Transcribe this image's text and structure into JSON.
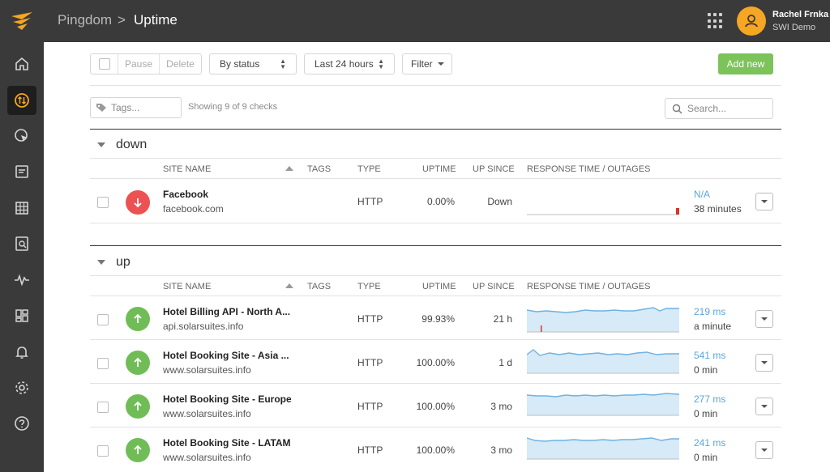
{
  "breadcrumb": {
    "parent": "Pingdom",
    "separator": ">",
    "current": "Uptime"
  },
  "user": {
    "name": "Rachel Frnka",
    "org": "SWI Demo"
  },
  "toolbar": {
    "pause_label": "Pause",
    "delete_label": "Delete",
    "status_filter": "By status",
    "time_range": "Last 24 hours",
    "filter_label": "Filter",
    "add_new_label": "Add new"
  },
  "tags": {
    "placeholder": "Tags..."
  },
  "showing_text": "Showing 9 of 9 checks",
  "search": {
    "placeholder": "Search..."
  },
  "columns": {
    "site_name": "SITE NAME",
    "tags": "TAGS",
    "type": "TYPE",
    "uptime": "UPTIME",
    "up_since": "UP SINCE",
    "response": "RESPONSE TIME / OUTAGES"
  },
  "groups": [
    {
      "title": "down",
      "rows": [
        {
          "name": "Facebook",
          "url": "facebook.com",
          "type": "HTTP",
          "uptime": "0.00%",
          "up_since": "Down",
          "response_time": "N/A",
          "last_check": "38 minutes",
          "status": "down"
        }
      ]
    },
    {
      "title": "up",
      "rows": [
        {
          "name": "Hotel Billing API - North A...",
          "url": "api.solarsuites.info",
          "type": "HTTP",
          "uptime": "99.93%",
          "up_since": "21 h",
          "response_time": "219 ms",
          "last_check": "a minute",
          "status": "up"
        },
        {
          "name": "Hotel Booking Site - Asia ...",
          "url": "www.solarsuites.info",
          "type": "HTTP",
          "uptime": "100.00%",
          "up_since": "1 d",
          "response_time": "541 ms",
          "last_check": "0 min",
          "status": "up"
        },
        {
          "name": "Hotel Booking Site - Europe",
          "url": "www.solarsuites.info",
          "type": "HTTP",
          "uptime": "100.00%",
          "up_since": "3 mo",
          "response_time": "277 ms",
          "last_check": "0 min",
          "status": "up"
        },
        {
          "name": "Hotel Booking Site - LATAM",
          "url": "www.solarsuites.info",
          "type": "HTTP",
          "uptime": "100.00%",
          "up_since": "3 mo",
          "response_time": "241 ms",
          "last_check": "0 min",
          "status": "up"
        }
      ]
    }
  ],
  "icons": {
    "sidebar": [
      "home-icon",
      "uptime-icon",
      "transaction-icon",
      "page-speed-icon",
      "grid-icon",
      "reports-icon",
      "rum-icon",
      "dashboard-icon",
      "alerts-icon",
      "settings-icon",
      "help-icon"
    ]
  },
  "colors": {
    "accent": "#f5a623",
    "up": "#70bd57",
    "down": "#ec5252",
    "add_button": "#7cc35a",
    "link": "#5aa6da"
  }
}
